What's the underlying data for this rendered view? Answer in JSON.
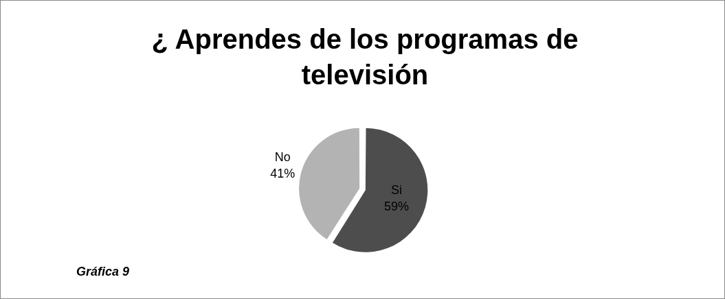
{
  "chart_data": {
    "type": "pie",
    "title": "¿ Aprendes de los programas de televisión",
    "categories": [
      "Si",
      "No"
    ],
    "values": [
      59,
      41
    ],
    "colors": [
      "#4d4d4d",
      "#b3b3b3"
    ],
    "value_labels": [
      "59%",
      "41%"
    ],
    "legend": false,
    "annotations": [
      "Gráfica 9"
    ]
  }
}
